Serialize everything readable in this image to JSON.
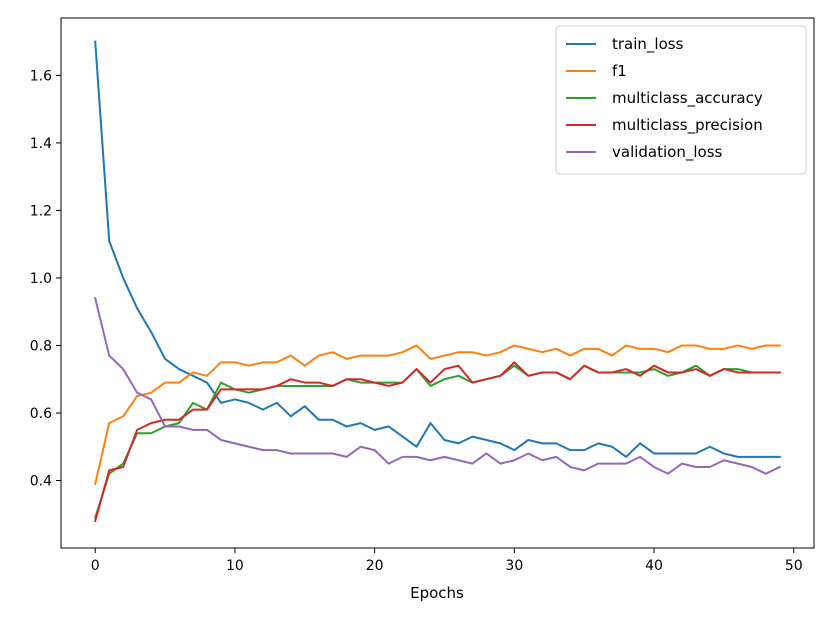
{
  "chart_data": {
    "type": "line",
    "title": "",
    "xlabel": "Epochs",
    "ylabel": "",
    "xlim": [
      -2.45,
      51.45
    ],
    "ylim": [
      0.2,
      1.77
    ],
    "x_ticks": [
      0,
      10,
      20,
      30,
      40,
      50
    ],
    "y_ticks": [
      0.4,
      0.6,
      0.8,
      1.0,
      1.2,
      1.4,
      1.6
    ],
    "grid": false,
    "legend_position": "top-right",
    "x": [
      0,
      1,
      2,
      3,
      4,
      5,
      6,
      7,
      8,
      9,
      10,
      11,
      12,
      13,
      14,
      15,
      16,
      17,
      18,
      19,
      20,
      21,
      22,
      23,
      24,
      25,
      26,
      27,
      28,
      29,
      30,
      31,
      32,
      33,
      34,
      35,
      36,
      37,
      38,
      39,
      40,
      41,
      42,
      43,
      44,
      45,
      46,
      47,
      48,
      49
    ],
    "series": [
      {
        "name": "train_loss",
        "color": "#1f77b4",
        "values": [
          1.7,
          1.11,
          1.0,
          0.91,
          0.84,
          0.76,
          0.73,
          0.71,
          0.69,
          0.63,
          0.64,
          0.63,
          0.61,
          0.63,
          0.59,
          0.62,
          0.58,
          0.58,
          0.56,
          0.57,
          0.55,
          0.56,
          0.53,
          0.5,
          0.57,
          0.52,
          0.51,
          0.53,
          0.52,
          0.51,
          0.49,
          0.52,
          0.51,
          0.51,
          0.49,
          0.49,
          0.51,
          0.5,
          0.47,
          0.51,
          0.48,
          0.48,
          0.48,
          0.48,
          0.5,
          0.48,
          0.47,
          0.47,
          0.47,
          0.47
        ]
      },
      {
        "name": "f1",
        "color": "#ff7f0e",
        "values": [
          0.39,
          0.57,
          0.59,
          0.65,
          0.66,
          0.69,
          0.69,
          0.72,
          0.71,
          0.75,
          0.75,
          0.74,
          0.75,
          0.75,
          0.77,
          0.74,
          0.77,
          0.78,
          0.76,
          0.77,
          0.77,
          0.77,
          0.78,
          0.8,
          0.76,
          0.77,
          0.78,
          0.78,
          0.77,
          0.78,
          0.8,
          0.79,
          0.78,
          0.79,
          0.77,
          0.79,
          0.79,
          0.77,
          0.8,
          0.79,
          0.79,
          0.78,
          0.8,
          0.8,
          0.79,
          0.79,
          0.8,
          0.79,
          0.8,
          0.8
        ]
      },
      {
        "name": "multiclass_accuracy",
        "color": "#2ca02c",
        "values": [
          0.29,
          0.42,
          0.45,
          0.54,
          0.54,
          0.56,
          0.57,
          0.63,
          0.61,
          0.69,
          0.67,
          0.66,
          0.67,
          0.68,
          0.68,
          0.68,
          0.68,
          0.68,
          0.7,
          0.69,
          0.69,
          0.69,
          0.69,
          0.73,
          0.68,
          0.7,
          0.71,
          0.69,
          0.7,
          0.71,
          0.74,
          0.71,
          0.72,
          0.72,
          0.7,
          0.74,
          0.72,
          0.72,
          0.72,
          0.72,
          0.73,
          0.71,
          0.72,
          0.74,
          0.71,
          0.73,
          0.73,
          0.72,
          0.72,
          0.72
        ]
      },
      {
        "name": "multiclass_precision",
        "color": "#d62728",
        "values": [
          0.28,
          0.43,
          0.44,
          0.55,
          0.57,
          0.58,
          0.58,
          0.61,
          0.61,
          0.67,
          0.67,
          0.67,
          0.67,
          0.68,
          0.7,
          0.69,
          0.69,
          0.68,
          0.7,
          0.7,
          0.69,
          0.68,
          0.69,
          0.73,
          0.69,
          0.73,
          0.74,
          0.69,
          0.7,
          0.71,
          0.75,
          0.71,
          0.72,
          0.72,
          0.7,
          0.74,
          0.72,
          0.72,
          0.73,
          0.71,
          0.74,
          0.72,
          0.72,
          0.73,
          0.71,
          0.73,
          0.72,
          0.72,
          0.72,
          0.72
        ]
      },
      {
        "name": "validation_loss",
        "color": "#9467bd",
        "values": [
          0.94,
          0.77,
          0.73,
          0.66,
          0.64,
          0.56,
          0.56,
          0.55,
          0.55,
          0.52,
          0.51,
          0.5,
          0.49,
          0.49,
          0.48,
          0.48,
          0.48,
          0.48,
          0.47,
          0.5,
          0.49,
          0.45,
          0.47,
          0.47,
          0.46,
          0.47,
          0.46,
          0.45,
          0.48,
          0.45,
          0.46,
          0.48,
          0.46,
          0.47,
          0.44,
          0.43,
          0.45,
          0.45,
          0.45,
          0.47,
          0.44,
          0.42,
          0.45,
          0.44,
          0.44,
          0.46,
          0.45,
          0.44,
          0.42,
          0.44
        ]
      }
    ]
  }
}
